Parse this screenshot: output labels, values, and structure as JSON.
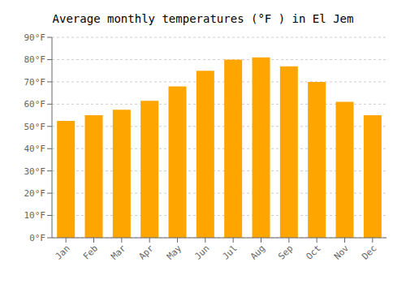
{
  "chart_data": {
    "type": "bar",
    "title": "Average monthly temperatures (°F ) in El Jem",
    "categories": [
      "Jan",
      "Feb",
      "Mar",
      "Apr",
      "May",
      "Jun",
      "Jul",
      "Aug",
      "Sep",
      "Oct",
      "Nov",
      "Dec"
    ],
    "values": [
      52.5,
      55.0,
      57.5,
      61.5,
      68.0,
      75.0,
      80.0,
      81.0,
      77.0,
      70.0,
      61.0,
      55.0
    ],
    "color": "#FFA500",
    "ylim": [
      0,
      90
    ],
    "yticks": [
      {
        "value": 0,
        "label": "0°F"
      },
      {
        "value": 10,
        "label": "10°F"
      },
      {
        "value": 20,
        "label": "20°F"
      },
      {
        "value": 30,
        "label": "30°F"
      },
      {
        "value": 40,
        "label": "40°F"
      },
      {
        "value": 50,
        "label": "50°F"
      },
      {
        "value": 60,
        "label": "60°F"
      },
      {
        "value": 70,
        "label": "70°F"
      },
      {
        "value": 80,
        "label": "80°F"
      },
      {
        "value": 90,
        "label": "90°F"
      }
    ],
    "grid": true
  }
}
